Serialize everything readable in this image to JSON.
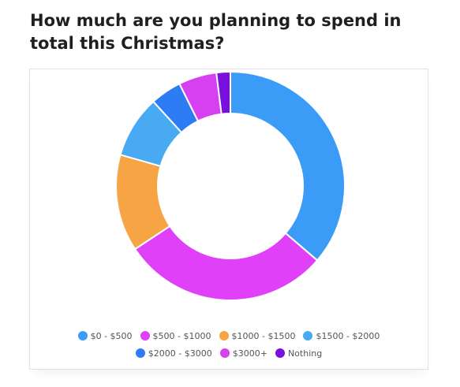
{
  "question": {
    "text": "How much are you planning to spend in total this Christmas?"
  },
  "chart_data": {
    "type": "pie",
    "variant": "doughnut",
    "categories": [
      "$0 - $500",
      "$500 - $1000",
      "$1000 - $1500",
      "$1500 - $2000",
      "$2000 - $3000",
      "$3000+",
      "Nothing"
    ],
    "values": [
      37,
      30,
      14,
      9,
      4.5,
      5.5,
      2
    ],
    "unit": "percent",
    "colors": [
      "#3a9cf6",
      "#e040f8",
      "#f6a444",
      "#48aaf3",
      "#2e7cf4",
      "#d640f0",
      "#7a10de"
    ],
    "legend_position": "bottom",
    "title": ""
  }
}
